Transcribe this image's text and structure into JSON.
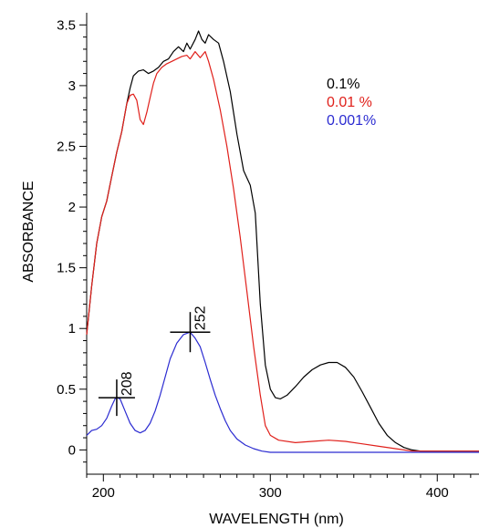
{
  "chart_data": {
    "type": "line",
    "xlabel": "WAVELENGTH (nm)",
    "ylabel": "ABSORBANCE",
    "xlim": [
      190,
      425
    ],
    "ylim": [
      -0.2,
      3.6
    ],
    "xticks": [
      200,
      300,
      400
    ],
    "yticks": [
      0,
      0.5,
      1,
      1.5,
      2,
      2.5,
      3,
      3.5
    ],
    "xtick_labels": [
      "200",
      "300",
      "400"
    ],
    "ytick_labels": [
      "0",
      "0.5",
      "1",
      "1.5",
      "2",
      "2.5",
      "3",
      "3.5"
    ],
    "grid": false,
    "legend_position": "top-right",
    "series": [
      {
        "name": "0.1%",
        "color": "#000000",
        "points": [
          [
            190,
            0.95
          ],
          [
            193,
            1.35
          ],
          [
            196,
            1.7
          ],
          [
            199,
            1.92
          ],
          [
            202,
            2.05
          ],
          [
            205,
            2.25
          ],
          [
            208,
            2.45
          ],
          [
            211,
            2.62
          ],
          [
            214,
            2.85
          ],
          [
            216,
            2.98
          ],
          [
            218,
            3.08
          ],
          [
            221,
            3.12
          ],
          [
            224,
            3.13
          ],
          [
            227,
            3.1
          ],
          [
            230,
            3.12
          ],
          [
            233,
            3.15
          ],
          [
            236,
            3.2
          ],
          [
            239,
            3.22
          ],
          [
            242,
            3.28
          ],
          [
            245,
            3.32
          ],
          [
            248,
            3.28
          ],
          [
            250,
            3.35
          ],
          [
            252,
            3.3
          ],
          [
            255,
            3.38
          ],
          [
            257,
            3.45
          ],
          [
            259,
            3.38
          ],
          [
            261,
            3.35
          ],
          [
            263,
            3.42
          ],
          [
            266,
            3.38
          ],
          [
            269,
            3.35
          ],
          [
            272,
            3.2
          ],
          [
            276,
            2.95
          ],
          [
            280,
            2.6
          ],
          [
            284,
            2.3
          ],
          [
            288,
            2.18
          ],
          [
            291,
            1.95
          ],
          [
            294,
            1.2
          ],
          [
            297,
            0.7
          ],
          [
            300,
            0.5
          ],
          [
            303,
            0.43
          ],
          [
            306,
            0.42
          ],
          [
            310,
            0.45
          ],
          [
            315,
            0.52
          ],
          [
            320,
            0.6
          ],
          [
            325,
            0.66
          ],
          [
            330,
            0.7
          ],
          [
            335,
            0.72
          ],
          [
            340,
            0.72
          ],
          [
            345,
            0.68
          ],
          [
            350,
            0.6
          ],
          [
            355,
            0.48
          ],
          [
            360,
            0.35
          ],
          [
            365,
            0.22
          ],
          [
            370,
            0.12
          ],
          [
            375,
            0.06
          ],
          [
            380,
            0.02
          ],
          [
            385,
            0.0
          ],
          [
            390,
            -0.01
          ],
          [
            400,
            -0.01
          ],
          [
            425,
            -0.01
          ]
        ]
      },
      {
        "name": "0.01 %",
        "color": "#e0201b",
        "points": [
          [
            190,
            0.95
          ],
          [
            193,
            1.35
          ],
          [
            196,
            1.7
          ],
          [
            199,
            1.92
          ],
          [
            202,
            2.05
          ],
          [
            205,
            2.25
          ],
          [
            208,
            2.45
          ],
          [
            211,
            2.62
          ],
          [
            214,
            2.85
          ],
          [
            216,
            2.92
          ],
          [
            218,
            2.93
          ],
          [
            220,
            2.88
          ],
          [
            222,
            2.72
          ],
          [
            224,
            2.68
          ],
          [
            226,
            2.78
          ],
          [
            228,
            2.9
          ],
          [
            230,
            3.02
          ],
          [
            232,
            3.1
          ],
          [
            235,
            3.15
          ],
          [
            238,
            3.18
          ],
          [
            241,
            3.2
          ],
          [
            244,
            3.22
          ],
          [
            247,
            3.24
          ],
          [
            250,
            3.25
          ],
          [
            252,
            3.22
          ],
          [
            255,
            3.28
          ],
          [
            258,
            3.23
          ],
          [
            261,
            3.28
          ],
          [
            263,
            3.2
          ],
          [
            266,
            3.05
          ],
          [
            270,
            2.8
          ],
          [
            274,
            2.5
          ],
          [
            278,
            2.15
          ],
          [
            282,
            1.75
          ],
          [
            286,
            1.3
          ],
          [
            290,
            0.85
          ],
          [
            294,
            0.45
          ],
          [
            297,
            0.2
          ],
          [
            300,
            0.12
          ],
          [
            305,
            0.08
          ],
          [
            315,
            0.06
          ],
          [
            325,
            0.07
          ],
          [
            335,
            0.08
          ],
          [
            345,
            0.07
          ],
          [
            355,
            0.05
          ],
          [
            365,
            0.03
          ],
          [
            375,
            0.01
          ],
          [
            385,
            -0.01
          ],
          [
            425,
            -0.01
          ]
        ]
      },
      {
        "name": "0.001%",
        "color": "#2b2bd1",
        "points": [
          [
            190,
            0.12
          ],
          [
            193,
            0.16
          ],
          [
            196,
            0.17
          ],
          [
            199,
            0.2
          ],
          [
            202,
            0.26
          ],
          [
            205,
            0.36
          ],
          [
            207,
            0.42
          ],
          [
            208,
            0.43
          ],
          [
            210,
            0.42
          ],
          [
            213,
            0.32
          ],
          [
            216,
            0.22
          ],
          [
            219,
            0.16
          ],
          [
            222,
            0.14
          ],
          [
            225,
            0.16
          ],
          [
            228,
            0.22
          ],
          [
            231,
            0.32
          ],
          [
            234,
            0.45
          ],
          [
            237,
            0.6
          ],
          [
            240,
            0.75
          ],
          [
            244,
            0.88
          ],
          [
            248,
            0.95
          ],
          [
            252,
            0.97
          ],
          [
            255,
            0.92
          ],
          [
            258,
            0.85
          ],
          [
            261,
            0.72
          ],
          [
            264,
            0.58
          ],
          [
            267,
            0.45
          ],
          [
            270,
            0.34
          ],
          [
            273,
            0.24
          ],
          [
            276,
            0.16
          ],
          [
            280,
            0.09
          ],
          [
            285,
            0.04
          ],
          [
            290,
            0.01
          ],
          [
            295,
            -0.01
          ],
          [
            300,
            -0.02
          ],
          [
            320,
            -0.02
          ],
          [
            360,
            -0.02
          ],
          [
            425,
            -0.02
          ]
        ]
      }
    ],
    "annotations": [
      {
        "label": "208",
        "x": 208,
        "y": 0.43
      },
      {
        "label": "252",
        "x": 252,
        "y": 0.97
      }
    ]
  }
}
